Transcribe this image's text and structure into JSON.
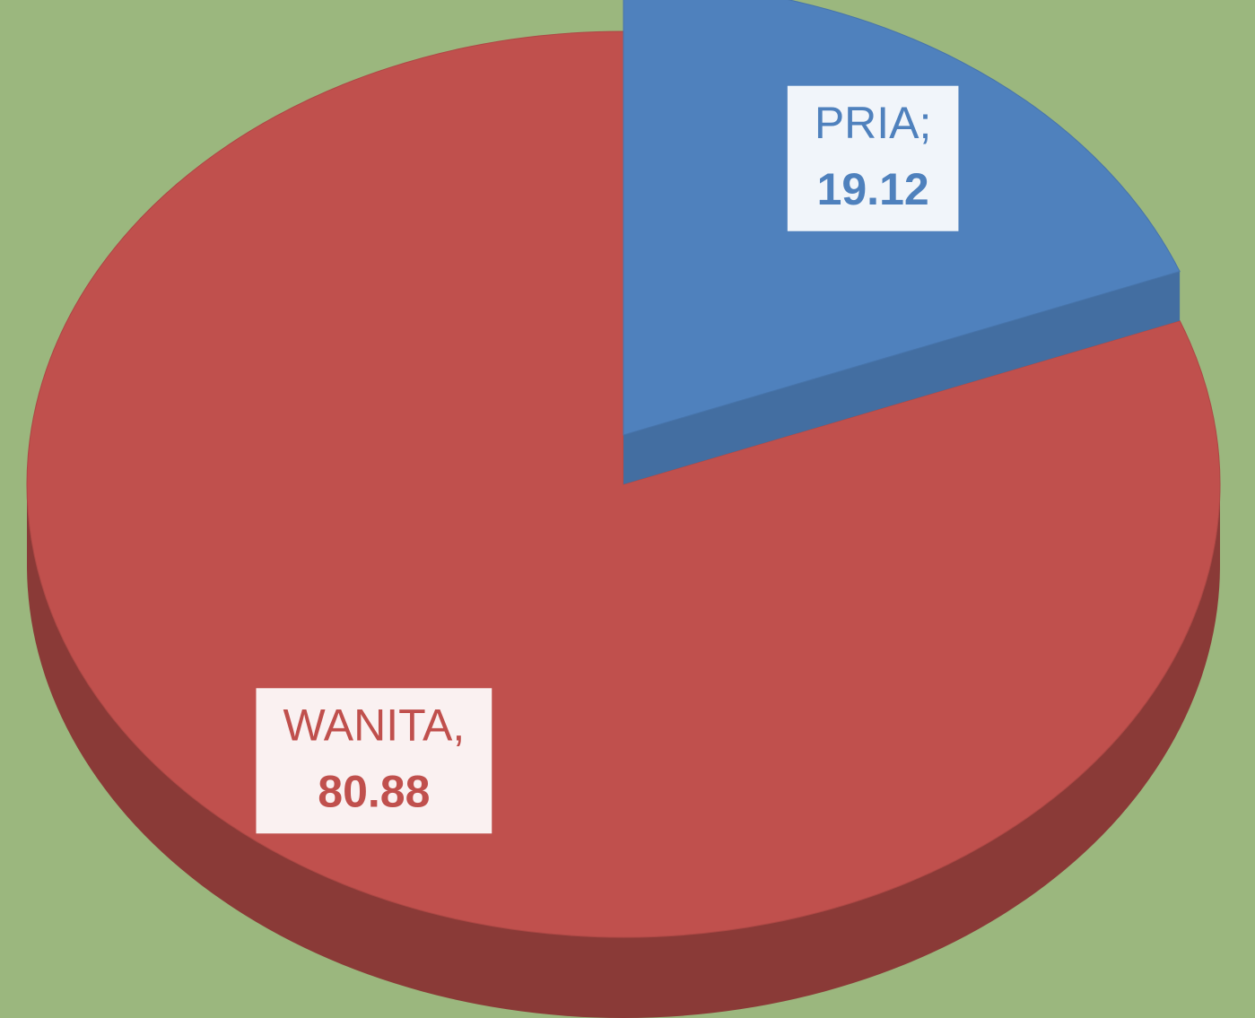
{
  "chart_data": {
    "type": "pie",
    "categories": [
      "PRIA;",
      "WANITA,"
    ],
    "values": [
      19.12,
      80.88
    ],
    "colors": [
      "#4f81bd",
      "#c0504d"
    ]
  }
}
